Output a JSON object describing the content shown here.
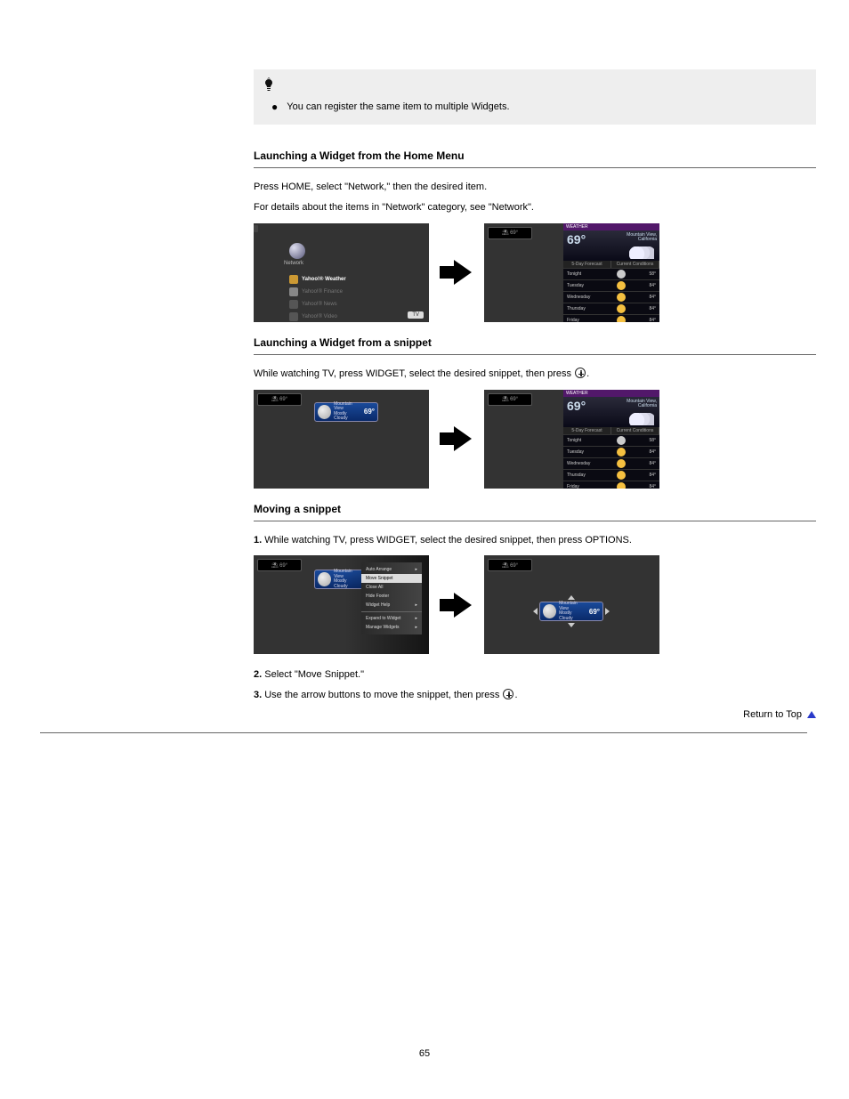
{
  "tip": {
    "title": "Tip",
    "bullet": "You can register the same item to multiple Widgets."
  },
  "section1": {
    "heading": "Launching a Widget from the Home Menu",
    "p1": "Press HOME, select \"Network,\" then the desired item.",
    "p2": "For details about the items in \"Network\" category, see \"Network\"."
  },
  "home_menu": {
    "category": "Network",
    "items": [
      "Yahoo!® Weather",
      "Yahoo!® Finance",
      "Yahoo!® News",
      "Yahoo!® Video"
    ],
    "tag": "TV"
  },
  "weather_panel": {
    "header": "WEATHER",
    "temp": "69°",
    "loc1": "Mountain View,",
    "loc2": "California",
    "tab1": "5-Day Forecast",
    "tab2": "Current Conditions",
    "rows": [
      {
        "d": "Tonight",
        "t": "58°",
        "c": "#cccccc"
      },
      {
        "d": "Tuesday",
        "t": "84°",
        "c": "#f5c040"
      },
      {
        "d": "Wednesday",
        "t": "84°",
        "c": "#f5c040"
      },
      {
        "d": "Thursday",
        "t": "84°",
        "c": "#f5c040"
      },
      {
        "d": "Friday",
        "t": "84°",
        "c": "#f5c040"
      }
    ],
    "colorbar": [
      "#cc3333",
      "#33cc33",
      "#3366cc",
      "#f5c040",
      "#cc33cc",
      "#33cccc"
    ]
  },
  "snippet": {
    "line1": "Mountain View",
    "line2": "Mostly Cloudy",
    "temp": "69°"
  },
  "section2": {
    "heading": "Launching a Widget from a snippet",
    "p1": "While watching TV, press WIDGET, select the desired snippet, then press ",
    "p1b": "."
  },
  "section3": {
    "heading": "Moving a snippet",
    "step1_a": "While watching TV, press WIDGET, select the desired snippet, then press OPTIONS.",
    "step2_a": "Select \"Move Snippet.\"",
    "step3_a": "Use the arrow buttons to move the snippet, then press ",
    "step3_b": "."
  },
  "context_menu": {
    "items": [
      "Auto Arrange",
      "Move Snippet",
      "Close All",
      "Hide Footer",
      "Widget Help"
    ],
    "items2": [
      "Expand to Widget",
      "Manage Widgets"
    ],
    "selected": 1
  },
  "top_link": "Return to Top",
  "page_number": "65",
  "colors": {
    "tip_bg": "#eeeeee",
    "screen_bg": "#333333",
    "panel_bg": "#0a0a12",
    "panel_hdr": "#52186a",
    "tri": "#2a3aca"
  }
}
